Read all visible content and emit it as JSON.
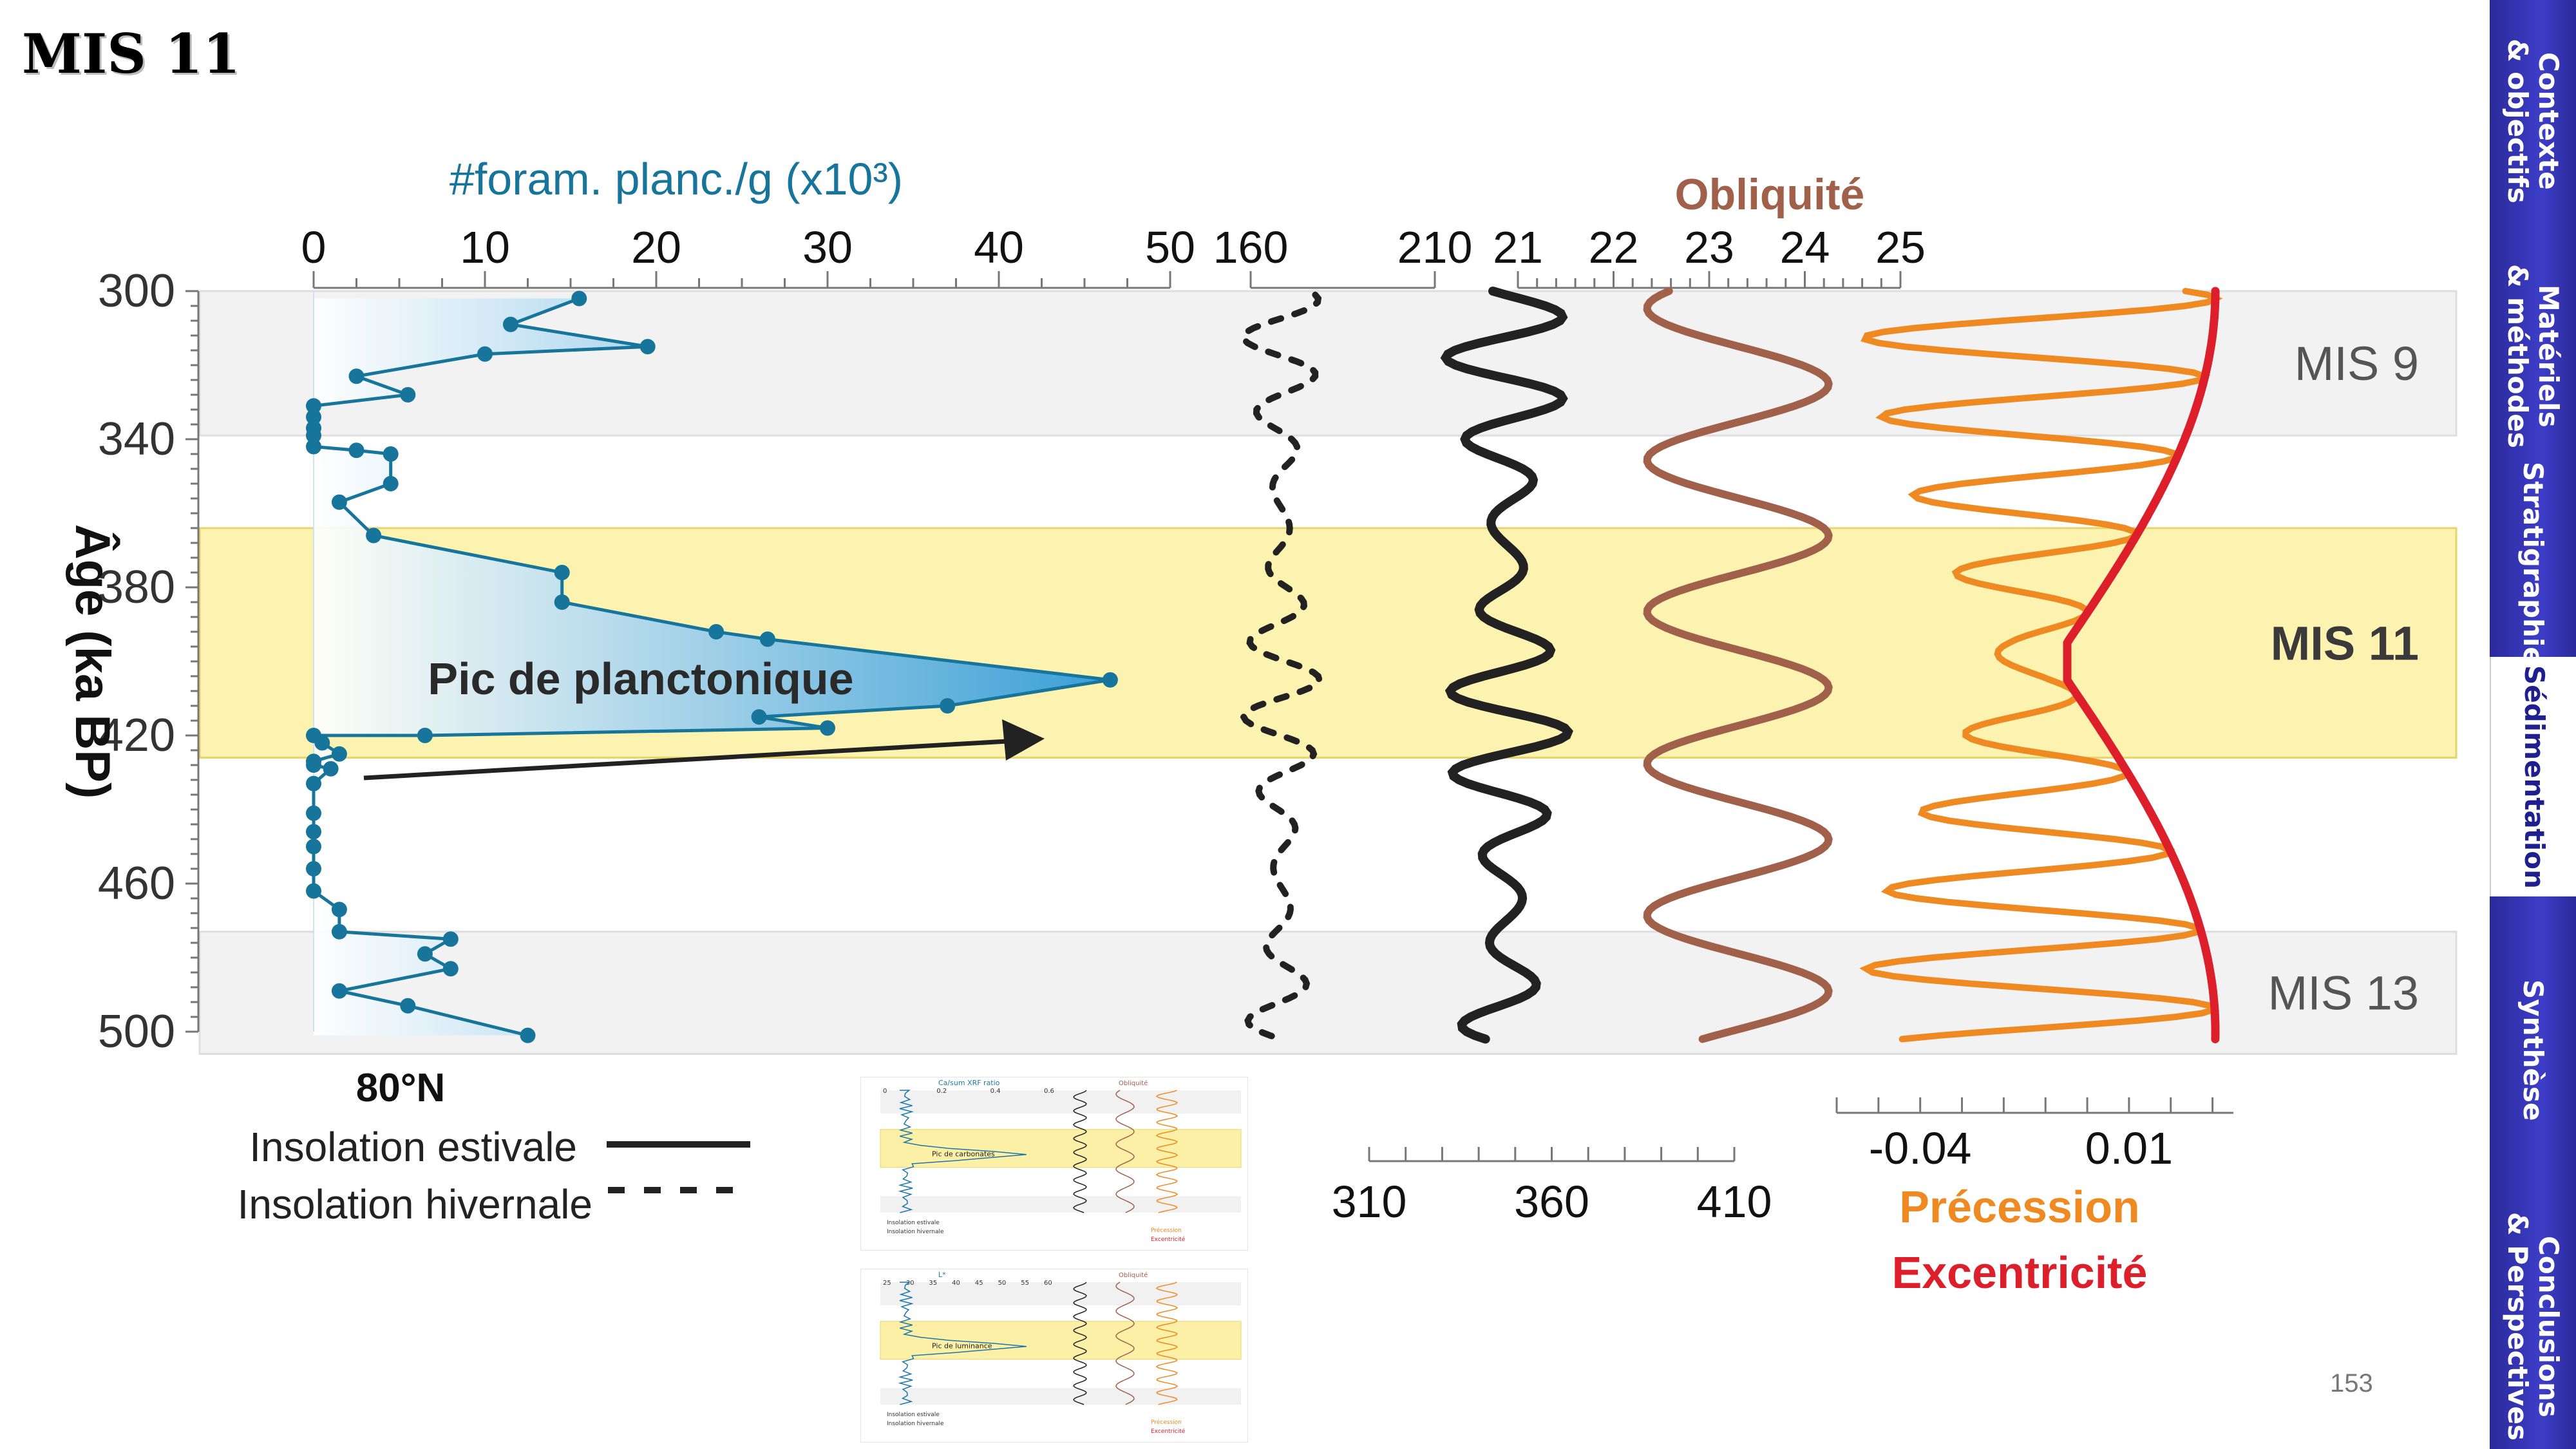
{
  "slide": {
    "title": "MIS 11",
    "page_number": "153"
  },
  "sidebar": {
    "items": [
      {
        "label": "Contexte\n& objectifs",
        "active": false
      },
      {
        "label": "Matériels\n& méthodes",
        "active": false
      },
      {
        "label": "Stratigraphie",
        "active": false
      },
      {
        "label": "Sédimentation",
        "active": true
      },
      {
        "label": "Synthèse",
        "active": false
      },
      {
        "label": "Conclusions\n& Perspectives",
        "active": false
      }
    ]
  },
  "colors": {
    "foram": "#17759c",
    "foram_fill": "#4aa9de",
    "mis11_band": "#fdf3b0",
    "mis11_border": "#e8d46a",
    "gray_band": "#f2f2f2",
    "insolation": "#222222",
    "obliquity": "#a0604a",
    "precession": "#ef8a22",
    "eccentricity": "#dc1f2b",
    "nav": "#2b2a9a"
  },
  "chart_data": {
    "type": "line",
    "y_axis": {
      "label": "Âge (ka BP)",
      "range": [
        300,
        500
      ],
      "ticks": [
        300,
        340,
        380,
        420,
        460,
        500
      ]
    },
    "bands": [
      {
        "label": "MIS 9",
        "range": [
          300,
          339
        ],
        "style": "gray"
      },
      {
        "label": "MIS 11",
        "range": [
          364,
          426
        ],
        "style": "yellow"
      },
      {
        "label": "MIS 13",
        "range": [
          473,
          506
        ],
        "style": "gray"
      }
    ],
    "foram": {
      "axis_label": "#foram. planc./g (x10³)",
      "range": [
        0,
        50
      ],
      "ticks": [
        0,
        10,
        20,
        30,
        40,
        50
      ],
      "annotation": "Pic de planctonique",
      "location_label": "80°N",
      "points": [
        [
          15.5,
          302
        ],
        [
          11.5,
          309
        ],
        [
          19.5,
          315
        ],
        [
          10,
          317
        ],
        [
          2.5,
          323
        ],
        [
          5.5,
          328
        ],
        [
          0,
          331
        ],
        [
          0,
          334
        ],
        [
          0,
          337
        ],
        [
          0,
          339
        ],
        [
          0,
          342
        ],
        [
          2.5,
          343
        ],
        [
          4.5,
          344
        ],
        [
          4.5,
          352
        ],
        [
          1.5,
          357
        ],
        [
          3.5,
          366
        ],
        [
          14.5,
          376
        ],
        [
          14.5,
          384
        ],
        [
          23.5,
          392
        ],
        [
          26.5,
          394
        ],
        [
          46.5,
          405
        ],
        [
          37,
          412
        ],
        [
          26,
          415
        ],
        [
          30,
          418
        ],
        [
          6.5,
          420
        ],
        [
          0,
          420
        ],
        [
          0.5,
          422
        ],
        [
          1.5,
          425
        ],
        [
          0,
          427
        ],
        [
          0,
          428
        ],
        [
          1,
          429
        ],
        [
          0,
          433
        ],
        [
          0,
          441
        ],
        [
          0,
          446
        ],
        [
          0,
          450
        ],
        [
          0,
          456
        ],
        [
          0,
          462
        ],
        [
          1.5,
          467
        ],
        [
          1.5,
          473
        ],
        [
          8,
          475
        ],
        [
          6.5,
          479
        ],
        [
          8,
          483
        ],
        [
          1.5,
          489
        ],
        [
          5.5,
          493
        ],
        [
          12.5,
          501
        ]
      ]
    },
    "insolation_axis": {
      "range": [
        160,
        210
      ],
      "ticks": [
        160,
        210
      ],
      "bottom_range": [
        310,
        410
      ],
      "bottom_ticks": [
        310,
        360,
        410
      ]
    },
    "obliquity": {
      "label": "Obliquité",
      "range": [
        21,
        25
      ],
      "ticks": [
        21,
        22,
        23,
        24,
        25
      ],
      "period_ka": 41,
      "amplitude": 0.95,
      "mean": 23.3,
      "phase_ka": 300
    },
    "precession": {
      "label": "Précession",
      "range": [
        -0.06,
        0.035
      ],
      "ticks": [
        -0.04,
        0.01
      ]
    },
    "eccentricity": {
      "label": "Excentricité"
    },
    "legend": {
      "summer": "Insolation estivale",
      "winter": "Insolation hivernale"
    }
  },
  "thumbnails": [
    {
      "axis_label": "Ca/sum XRF ratio",
      "ticks": [
        "0",
        "0.2",
        "0.4",
        "0.6"
      ],
      "annotation": "Pic de carbonates",
      "obliquity": "Obliquité",
      "legend": [
        "Insolation estivale",
        "Insolation hivernale"
      ],
      "labels": [
        "Précession",
        "Excentricité"
      ]
    },
    {
      "axis_label": "L*",
      "ticks": [
        "25",
        "30",
        "35",
        "40",
        "45",
        "50",
        "55",
        "60"
      ],
      "annotation": "Pic de luminance",
      "obliquity": "Obliquité",
      "legend": [
        "Insolation estivale",
        "Insolation hivernale"
      ],
      "labels": [
        "Précession",
        "Excentricité"
      ]
    }
  ]
}
